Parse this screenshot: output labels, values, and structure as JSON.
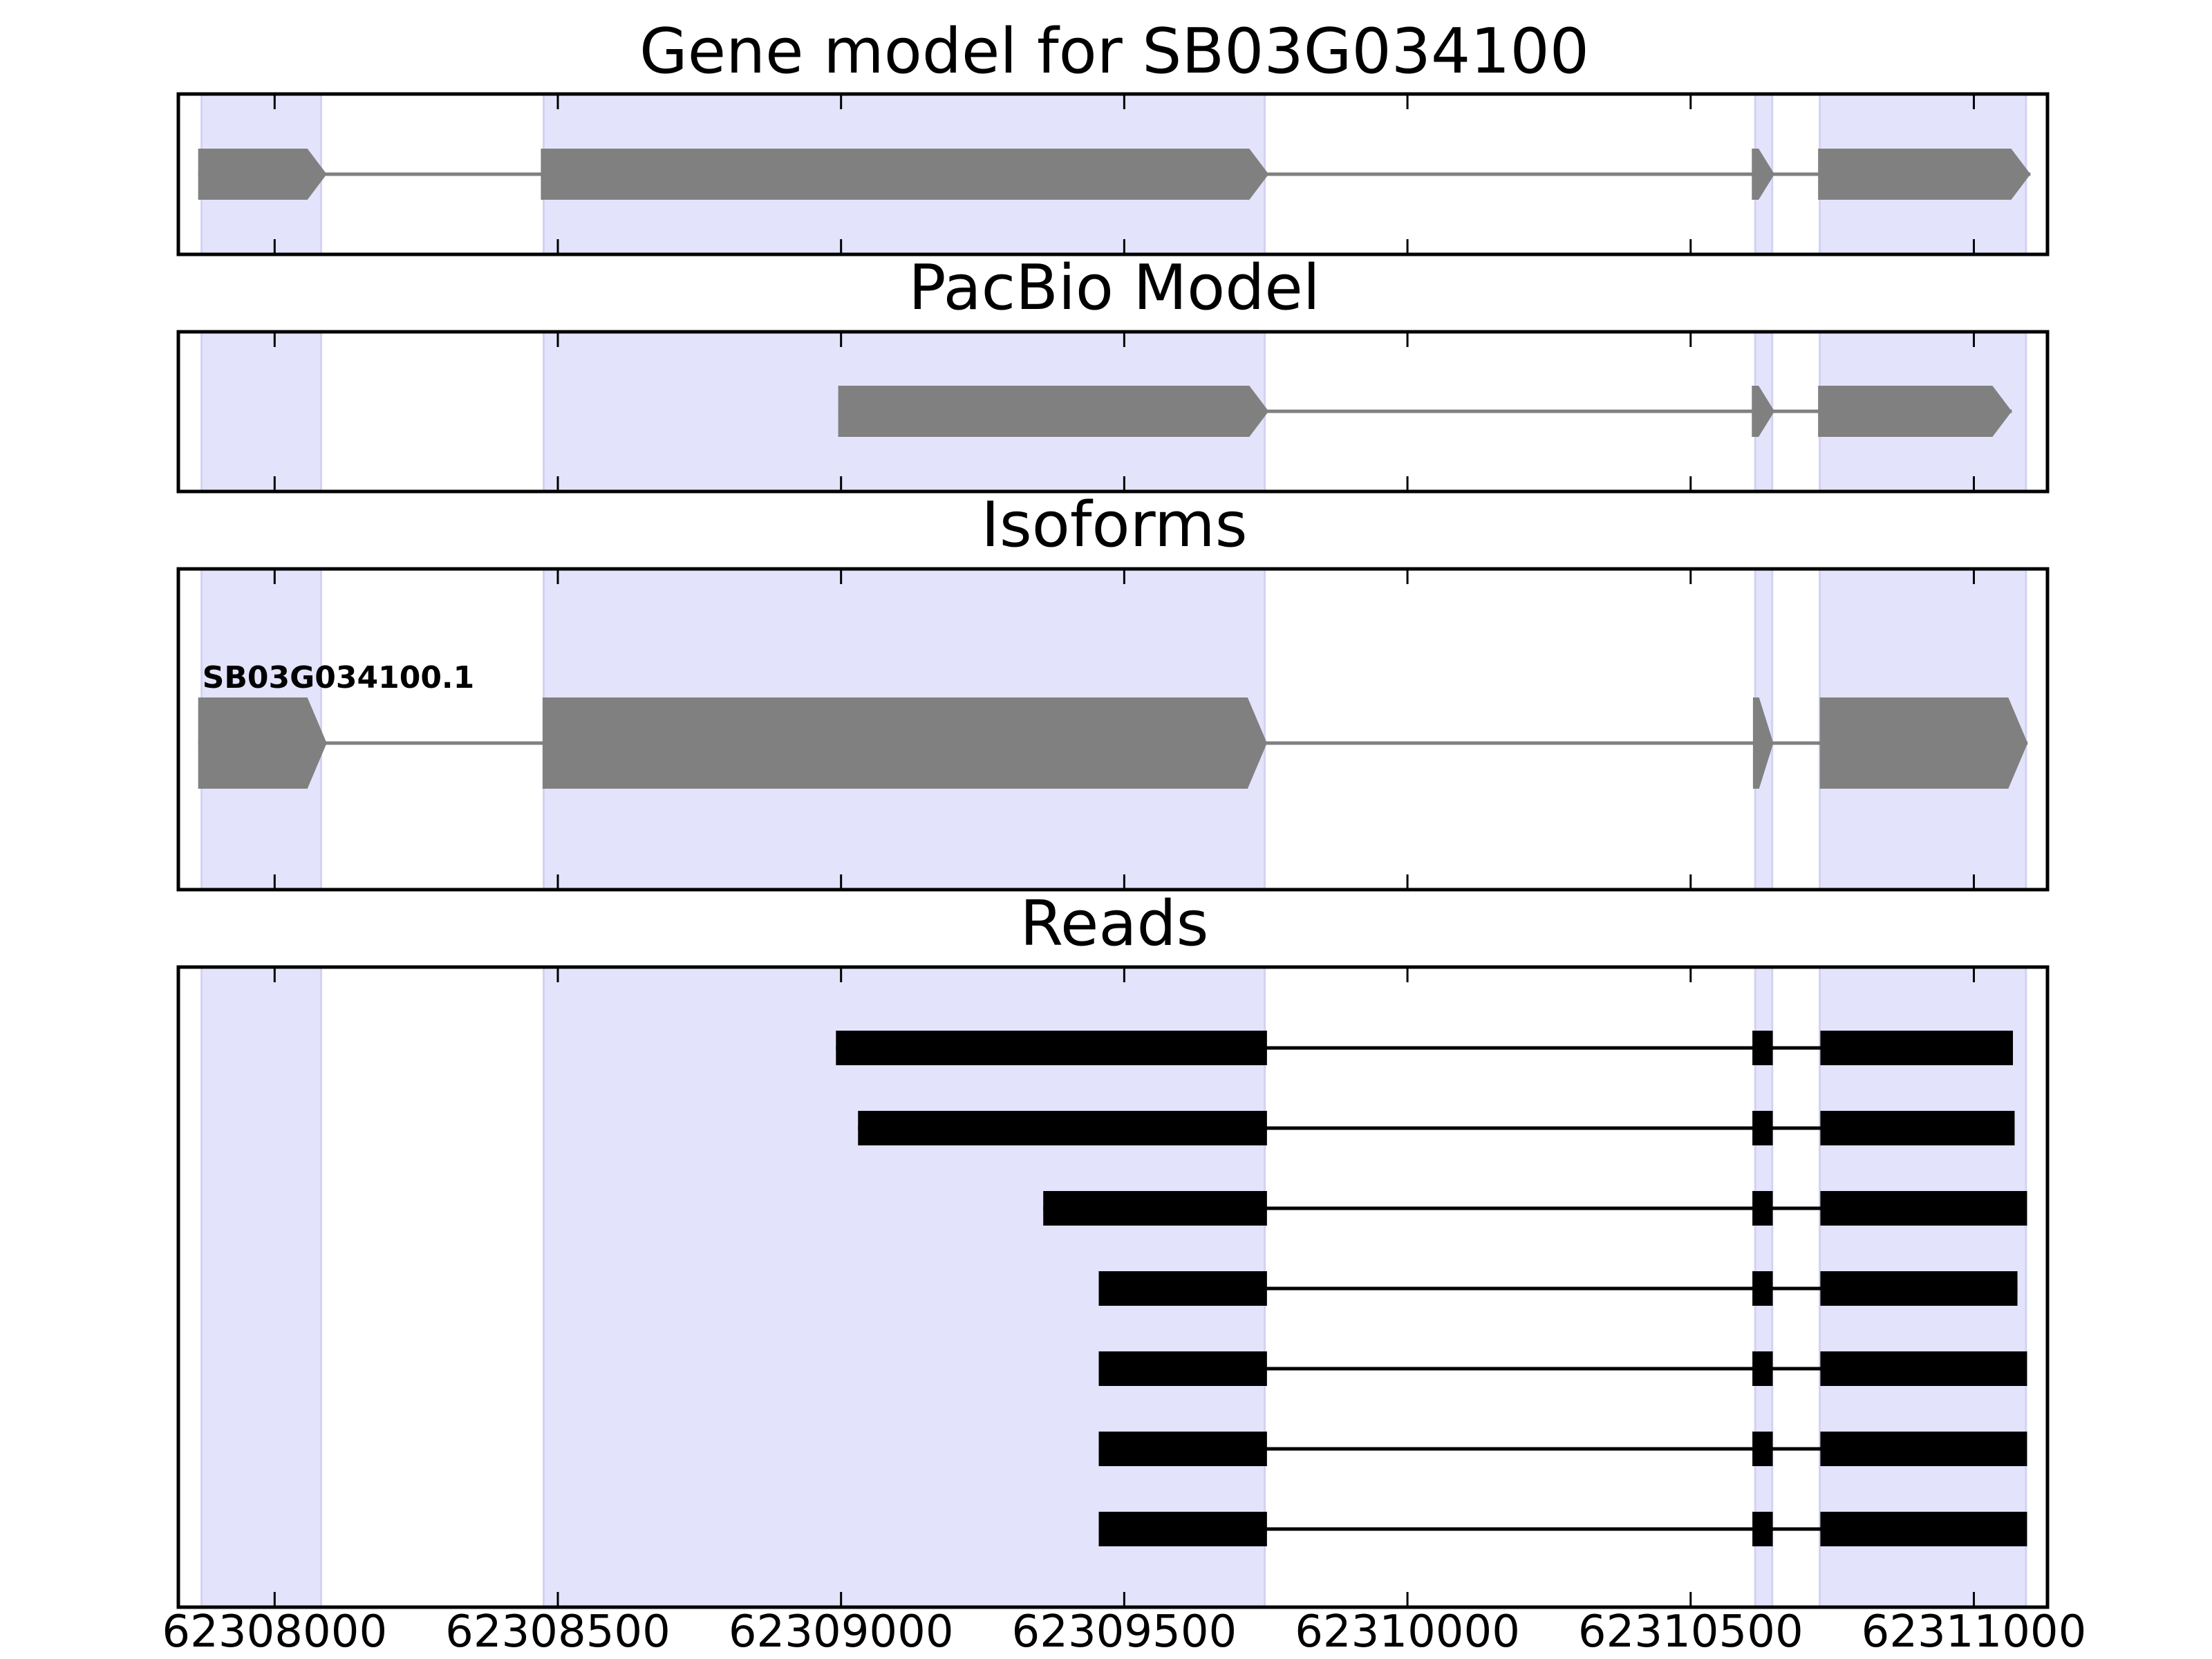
{
  "colors": {
    "shade": "#e3e3fb",
    "shade_edge": "#d2d2f2",
    "model": "#808080",
    "read": "#000000",
    "frame": "#000000"
  },
  "chart_data": {
    "type": "gene-structure",
    "x_range": [
      62307830,
      62311130
    ],
    "x_ticks": [
      62308000,
      62308500,
      62309000,
      62309500,
      62310000,
      62310500,
      62311000
    ],
    "x_tick_labels": [
      "62308000",
      "62308500",
      "62309000",
      "62309500",
      "62310000",
      "62310500",
      "62311000"
    ],
    "shaded_exons": [
      [
        62307871,
        62308082
      ],
      [
        62308475,
        62309748
      ],
      [
        62310614,
        62310644
      ],
      [
        62310728,
        62311092
      ]
    ],
    "panels": {
      "gene_model": {
        "title": "Gene model for SB03G034100",
        "exons": [
          [
            62307865,
            62308092
          ],
          [
            62308470,
            62309755
          ],
          [
            62310608,
            62310648
          ],
          [
            62310725,
            62311100
          ]
        ],
        "strand": "+"
      },
      "pacbio_model": {
        "title": "PacBio Model",
        "exons": [
          [
            62308995,
            62309755
          ],
          [
            62310608,
            62310648
          ],
          [
            62310725,
            62311067
          ]
        ],
        "strand": "+"
      },
      "isoforms": {
        "title": "Isoforms",
        "items": [
          {
            "name": "SB03G034100.1",
            "exons": [
              [
                62307865,
                62308092
              ],
              [
                62308473,
                62309752
              ],
              [
                62310610,
                62310646
              ],
              [
                62310728,
                62311095
              ]
            ],
            "strand": "+"
          }
        ]
      },
      "reads": {
        "title": "Reads",
        "items": [
          {
            "exons": [
              [
                62308991,
                62309752
              ],
              [
                62310609,
                62310645
              ],
              [
                62310729,
                62311069
              ]
            ]
          },
          {
            "exons": [
              [
                62309030,
                62309752
              ],
              [
                62310609,
                62310645
              ],
              [
                62310729,
                62311072
              ]
            ]
          },
          {
            "exons": [
              [
                62309357,
                62309752
              ],
              [
                62310609,
                62310645
              ],
              [
                62310729,
                62311094
              ]
            ]
          },
          {
            "exons": [
              [
                62309455,
                62309752
              ],
              [
                62310609,
                62310645
              ],
              [
                62310729,
                62311077
              ]
            ]
          },
          {
            "exons": [
              [
                62309455,
                62309752
              ],
              [
                62310609,
                62310645
              ],
              [
                62310729,
                62311094
              ]
            ]
          },
          {
            "exons": [
              [
                62309455,
                62309752
              ],
              [
                62310609,
                62310645
              ],
              [
                62310729,
                62311094
              ]
            ]
          },
          {
            "exons": [
              [
                62309455,
                62309752
              ],
              [
                62310609,
                62310645
              ],
              [
                62310729,
                62311094
              ]
            ]
          }
        ]
      }
    }
  }
}
